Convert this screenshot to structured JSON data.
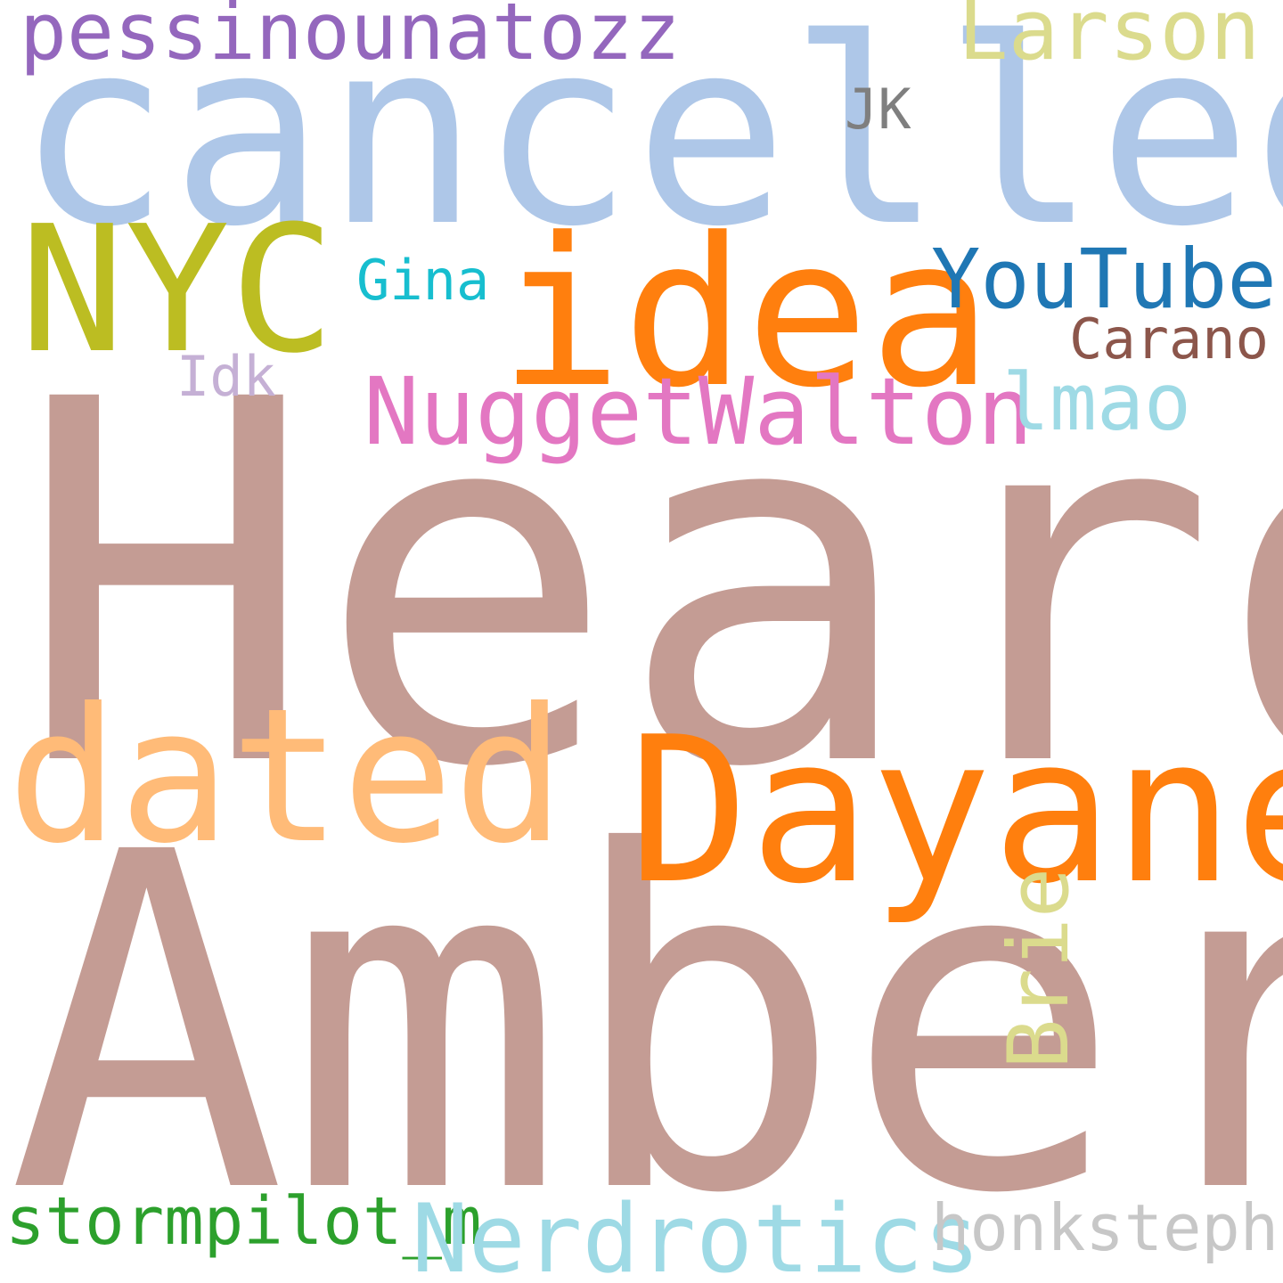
{
  "words": {
    "heard": {
      "text": "Heard",
      "color": "#c49c94"
    },
    "amber": {
      "text": "Amber",
      "color": "#c49c94"
    },
    "cancelled": {
      "text": "cancelled",
      "color": "#aec7e8"
    },
    "nyc": {
      "text": "NYC",
      "color": "#bcbd22"
    },
    "idea": {
      "text": "idea",
      "color": "#ff7f0e"
    },
    "dated": {
      "text": "dated",
      "color": "#ffbb78"
    },
    "dayane": {
      "text": "Dayane",
      "color": "#ff7f0e"
    },
    "pessinounatozz": {
      "text": "pessinounatozz",
      "color": "#9467bd"
    },
    "larson": {
      "text": "Larson",
      "color": "#dbdb8d"
    },
    "jk": {
      "text": "JK",
      "color": "#7f7f7f"
    },
    "youtube": {
      "text": "YouTube",
      "color": "#1f77b4"
    },
    "gina": {
      "text": "Gina",
      "color": "#17becf"
    },
    "carano": {
      "text": "Carano",
      "color": "#8c564b"
    },
    "idk": {
      "text": "Idk",
      "color": "#c5b0d5"
    },
    "nuggetwalton": {
      "text": "NuggetWalton",
      "color": "#e377c2"
    },
    "lmao": {
      "text": "lmao",
      "color": "#9edae5"
    },
    "brie": {
      "text": "Brie",
      "color": "#dbdb8d"
    },
    "stormpilot": {
      "text": "stormpilot_m",
      "color": "#2ca02c"
    },
    "nerdrotics": {
      "text": "Nerdrotics",
      "color": "#9edae5"
    },
    "honkstephs": {
      "text": "honkstephs",
      "color": "#c7c7c7"
    }
  }
}
